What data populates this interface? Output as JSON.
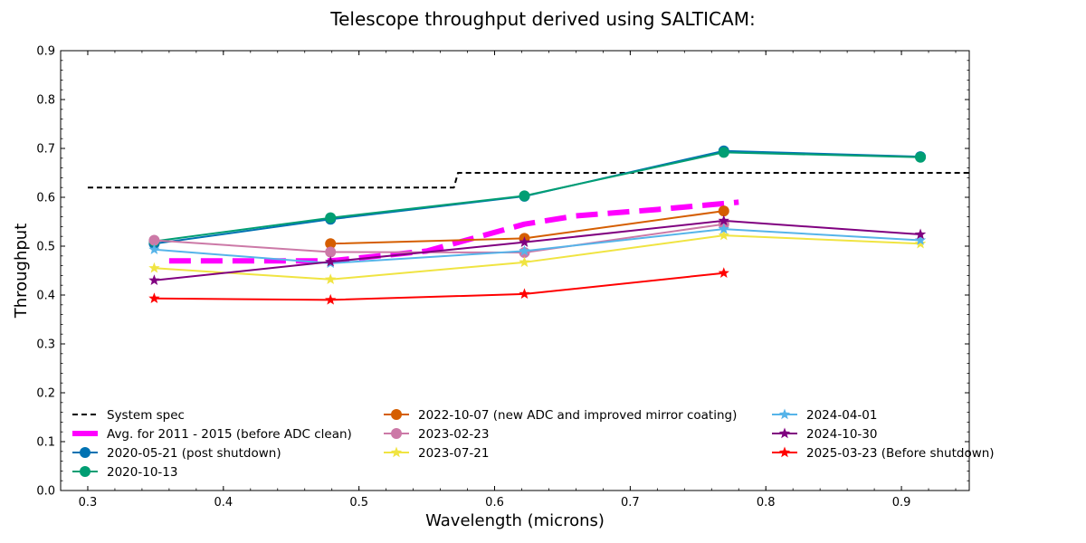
{
  "chart_data": {
    "type": "line",
    "title": "Telescope throughput derived using SALTICAM:",
    "xlabel": "Wavelength (microns)",
    "ylabel": "Throughput",
    "xlim": [
      0.28,
      0.95
    ],
    "ylim": [
      0.0,
      0.9
    ],
    "xticks": [
      "0.3",
      "0.4",
      "0.5",
      "0.6",
      "0.7",
      "0.8",
      "0.9"
    ],
    "yticks": [
      "0.0",
      "0.1",
      "0.2",
      "0.3",
      "0.4",
      "0.5",
      "0.6",
      "0.7",
      "0.8",
      "0.9"
    ],
    "grid": false,
    "legend_placement": "lower-center",
    "series": [
      {
        "name": "System spec",
        "color": "#000000",
        "style": "dashed",
        "marker": "none",
        "x": [
          0.3,
          0.57,
          0.573,
          0.95
        ],
        "y": [
          0.62,
          0.62,
          0.65,
          0.65
        ]
      },
      {
        "name": "Avg. for 2011 - 2015 (before ADC clean)",
        "color": "#ff00ff",
        "style": "thick-dashed",
        "marker": "none",
        "x": [
          0.36,
          0.479,
          0.55,
          0.622,
          0.66,
          0.72,
          0.78
        ],
        "y": [
          0.47,
          0.47,
          0.49,
          0.545,
          0.562,
          0.575,
          0.59
        ]
      },
      {
        "name": "2020-05-21 (post shutdown)",
        "color": "#0072b2",
        "style": "solid",
        "marker": "circle",
        "x": [
          0.349,
          0.479,
          0.622,
          0.769,
          0.914
        ],
        "y": [
          0.505,
          0.555,
          0.602,
          0.695,
          0.683
        ]
      },
      {
        "name": "2020-10-13",
        "color": "#009e73",
        "style": "solid",
        "marker": "circle",
        "x": [
          0.349,
          0.479,
          0.622,
          0.769,
          0.914
        ],
        "y": [
          0.51,
          0.558,
          0.603,
          0.692,
          0.682
        ]
      },
      {
        "name": "2022-10-07 (new ADC and improved mirror coating)",
        "color": "#d55e00",
        "style": "solid",
        "marker": "circle",
        "x": [
          0.479,
          0.622,
          0.769
        ],
        "y": [
          0.505,
          0.516,
          0.572
        ]
      },
      {
        "name": "2023-02-23",
        "color": "#cc79a7",
        "style": "solid",
        "marker": "circle",
        "x": [
          0.349,
          0.479,
          0.622,
          0.769
        ],
        "y": [
          0.512,
          0.488,
          0.487,
          0.545
        ]
      },
      {
        "name": "2023-07-21",
        "color": "#f0e442",
        "style": "solid",
        "marker": "star",
        "x": [
          0.349,
          0.479,
          0.622,
          0.769,
          0.914
        ],
        "y": [
          0.455,
          0.432,
          0.467,
          0.522,
          0.505
        ]
      },
      {
        "name": "2024-04-01",
        "color": "#56b4e9",
        "style": "solid",
        "marker": "star",
        "x": [
          0.349,
          0.479,
          0.622,
          0.769,
          0.914
        ],
        "y": [
          0.493,
          0.465,
          0.49,
          0.535,
          0.512
        ]
      },
      {
        "name": "2024-10-30",
        "color": "#800080",
        "style": "solid",
        "marker": "star",
        "x": [
          0.349,
          0.479,
          0.622,
          0.769,
          0.914
        ],
        "y": [
          0.43,
          0.468,
          0.508,
          0.552,
          0.524
        ]
      },
      {
        "name": "2025-03-23 (Before shutdown)",
        "color": "#ff0000",
        "style": "solid",
        "marker": "star",
        "x": [
          0.349,
          0.479,
          0.622,
          0.769
        ],
        "y": [
          0.393,
          0.39,
          0.402,
          0.445
        ]
      }
    ]
  }
}
